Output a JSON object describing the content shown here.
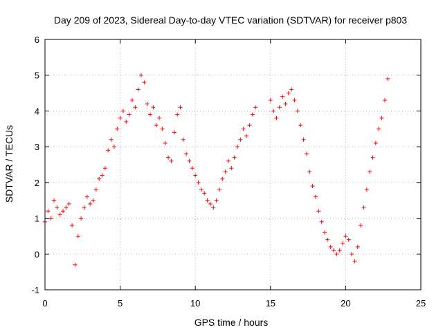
{
  "chart_data": {
    "type": "scatter",
    "title": "Day 209 of 2023, Sidereal Day-to-day VTEC variation (SDTVAR) for receiver p803",
    "xlabel": "GPS time / hours",
    "ylabel": "SDTVAR / TECUs",
    "xlim": [
      0,
      25
    ],
    "ylim": [
      -1,
      6
    ],
    "xticks": [
      "0",
      "5",
      "10",
      "15",
      "20",
      "25"
    ],
    "yticks": [
      "-1",
      "0",
      "1",
      "2",
      "3",
      "4",
      "5",
      "6"
    ],
    "grid": true,
    "marker": "+",
    "color": "#ff0000",
    "series": [
      {
        "name": "p803",
        "x": [
          0.0,
          0.2,
          0.4,
          0.6,
          0.8,
          1.0,
          1.2,
          1.4,
          1.6,
          1.8,
          2.0,
          2.2,
          2.4,
          2.6,
          2.8,
          3.0,
          3.2,
          3.4,
          3.6,
          3.8,
          4.0,
          4.2,
          4.4,
          4.6,
          4.8,
          5.0,
          5.2,
          5.4,
          5.6,
          5.8,
          6.0,
          6.2,
          6.4,
          6.6,
          6.8,
          7.0,
          7.2,
          7.4,
          7.6,
          7.8,
          8.0,
          8.2,
          8.4,
          8.6,
          8.8,
          9.0,
          9.2,
          9.4,
          9.6,
          9.8,
          10.0,
          10.2,
          10.4,
          10.6,
          10.8,
          11.0,
          11.2,
          11.4,
          11.6,
          11.8,
          12.0,
          12.2,
          12.4,
          12.6,
          12.8,
          13.0,
          13.2,
          13.4,
          13.6,
          13.8,
          14.0,
          15.0,
          15.2,
          15.4,
          15.6,
          15.8,
          16.0,
          16.2,
          16.4,
          16.6,
          16.8,
          17.0,
          17.2,
          17.4,
          17.6,
          17.8,
          18.0,
          18.2,
          18.4,
          18.6,
          18.8,
          19.0,
          19.2,
          19.4,
          19.6,
          19.8,
          20.0,
          20.2,
          20.4,
          20.6,
          20.8,
          21.0,
          21.2,
          21.4,
          21.6,
          21.8,
          22.0,
          22.2,
          22.4,
          22.6,
          22.8
        ],
        "y": [
          0.9,
          1.2,
          1.0,
          1.5,
          1.3,
          1.1,
          1.2,
          1.3,
          1.4,
          0.8,
          -0.3,
          0.5,
          1.0,
          1.3,
          1.6,
          1.4,
          1.5,
          1.8,
          2.1,
          2.2,
          2.4,
          2.9,
          3.2,
          3.0,
          3.5,
          3.8,
          4.0,
          3.7,
          3.9,
          4.3,
          4.1,
          4.6,
          5.0,
          4.8,
          4.2,
          3.9,
          4.1,
          3.6,
          3.8,
          3.5,
          3.1,
          2.7,
          2.6,
          3.4,
          3.9,
          4.1,
          3.2,
          2.8,
          2.6,
          2.4,
          2.2,
          2.0,
          1.8,
          1.7,
          1.5,
          1.4,
          1.3,
          1.5,
          1.8,
          2.1,
          2.3,
          2.6,
          2.4,
          2.7,
          3.0,
          3.2,
          3.5,
          3.3,
          3.6,
          3.9,
          4.1,
          4.3,
          4.0,
          3.8,
          4.1,
          4.4,
          4.2,
          4.5,
          4.6,
          4.3,
          4.0,
          3.6,
          3.2,
          2.8,
          2.3,
          1.9,
          1.6,
          1.2,
          0.9,
          0.6,
          0.4,
          0.2,
          0.1,
          0.0,
          0.1,
          0.3,
          0.5,
          0.4,
          0.0,
          -0.2,
          0.2,
          0.8,
          1.3,
          1.8,
          2.3,
          2.7,
          3.1,
          3.5,
          3.8,
          4.3,
          4.9
        ]
      }
    ]
  }
}
